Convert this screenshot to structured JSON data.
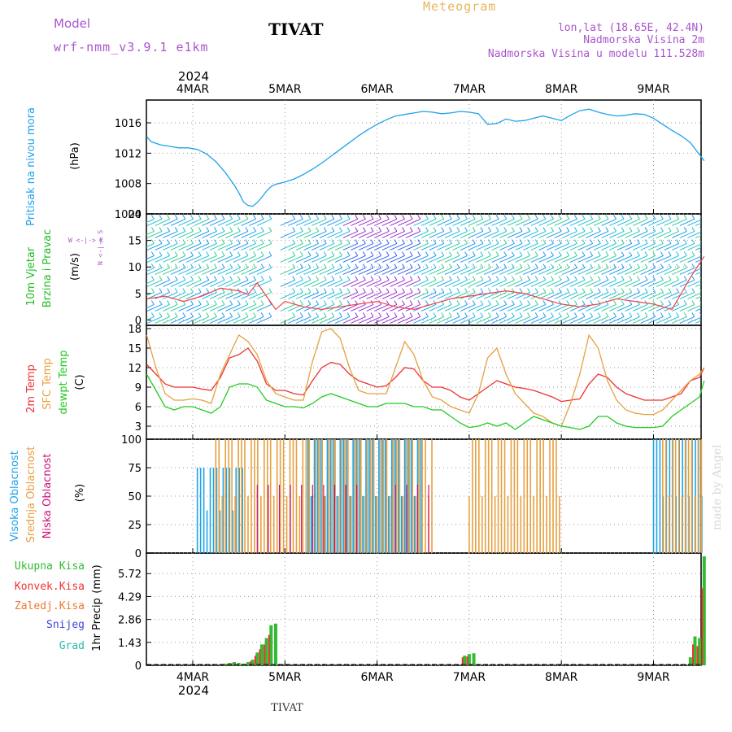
{
  "header": {
    "model_label": "Model",
    "model_name": "wrf-nmm_v3.9.1 e1km",
    "station": "TIVAT",
    "product": "Meteogram",
    "lonlat": "lon,lat (18.65E, 42.4N)",
    "elevation": "Nadmorska Visina 2m",
    "model_elevation": "Nadmorska Visina u modelu 111.528m",
    "year": "2024",
    "footer_station": "TIVAT",
    "credit": "made by Angel"
  },
  "colors": {
    "pressure": "#1fa3e8",
    "temp2m": "#ee3333",
    "sfc_temp": "#e6a040",
    "dewpt": "#22cc22",
    "high_cloud": "#1fa3e8",
    "mid_cloud": "#e6a040",
    "low_cloud": "#cc1177",
    "total_precip": "#33bb33",
    "conv_precip": "#ee3333",
    "freezing_precip": "#ee7733",
    "snow": "#4444dd",
    "hail": "#22bbaa",
    "purple_text": "#aa55cc",
    "gold_text": "#e6b85c"
  },
  "x_axis": {
    "ticks": [
      "4MAR",
      "5MAR",
      "6MAR",
      "7MAR",
      "8MAR",
      "9MAR"
    ]
  },
  "chart_data": [
    {
      "type": "line",
      "panel": "pressure",
      "ylabel_main": "Pritisak na nivou mora",
      "ylabel_unit": "(hPa)",
      "yticks": [
        "1004",
        "1008",
        "1012",
        "1016"
      ],
      "ylim": [
        1004,
        1019
      ],
      "x_unit": "days from 4MAR 00",
      "grid": true,
      "series": [
        {
          "x": [
            -0.5,
            -0.45,
            -0.35,
            -0.25,
            -0.15,
            -0.05,
            0.05,
            0.15,
            0.25,
            0.35,
            0.45,
            0.5,
            0.55,
            0.6,
            0.65,
            0.7,
            0.75,
            0.8,
            0.85,
            0.9,
            1.0,
            1.1,
            1.2,
            1.3,
            1.4,
            1.5,
            1.6,
            1.7,
            1.8,
            1.9,
            2.0,
            2.1,
            2.2,
            2.3,
            2.4,
            2.5,
            2.6,
            2.7,
            2.8,
            2.9,
            3.0,
            3.1,
            3.2,
            3.3,
            3.4,
            3.5,
            3.6,
            3.7,
            3.8,
            3.9,
            4.0,
            4.1,
            4.2,
            4.3,
            4.4,
            4.5,
            4.6,
            4.7,
            4.8,
            4.9,
            5.0,
            5.1,
            5.2,
            5.3,
            5.4,
            5.5,
            5.55
          ],
          "values": [
            1014.2,
            1013.5,
            1013.1,
            1012.9,
            1012.7,
            1012.7,
            1012.5,
            1011.9,
            1010.9,
            1009.5,
            1007.8,
            1006.8,
            1005.6,
            1005.1,
            1005.0,
            1005.5,
            1006.2,
            1007.0,
            1007.6,
            1007.9,
            1008.2,
            1008.6,
            1009.2,
            1009.9,
            1010.7,
            1011.6,
            1012.5,
            1013.4,
            1014.3,
            1015.1,
            1015.8,
            1016.4,
            1016.9,
            1017.1,
            1017.3,
            1017.5,
            1017.4,
            1017.2,
            1017.3,
            1017.5,
            1017.4,
            1017.2,
            1015.8,
            1015.9,
            1016.5,
            1016.2,
            1016.3,
            1016.6,
            1016.9,
            1016.6,
            1016.3,
            1017.0,
            1017.6,
            1017.8,
            1017.4,
            1017.1,
            1016.9,
            1017.0,
            1017.2,
            1017.1,
            1016.6,
            1015.8,
            1015.0,
            1014.3,
            1013.4,
            1011.8,
            1011.0
          ]
        }
      ]
    },
    {
      "type": "line",
      "panel": "wind",
      "ylabel_main": "10m Vjetar",
      "ylabel_sub": "Brzina i Pravac",
      "ylabel_unit": "(m/s)",
      "compass_label": "W <-|-> E",
      "compass_vertical": "N <-|-> S",
      "yticks": [
        "0",
        "5",
        "10",
        "15",
        "20"
      ],
      "ylim": [
        -1,
        20
      ],
      "grid": true,
      "series": [
        {
          "name": "",
          "x": [
            -0.5,
            -0.3,
            -0.1,
            0.1,
            0.3,
            0.5,
            0.6,
            0.7,
            0.8,
            0.9,
            1.0,
            1.2,
            1.4,
            1.6,
            1.8,
            2.0,
            2.2,
            2.4,
            2.6,
            2.8,
            3.0,
            3.2,
            3.4,
            3.6,
            3.8,
            4.0,
            4.2,
            4.4,
            4.6,
            4.8,
            5.0,
            5.2,
            5.4,
            5.55
          ],
          "values": [
            4.0,
            4.5,
            3.5,
            4.5,
            6.0,
            5.5,
            4.8,
            7.0,
            4.5,
            2.0,
            3.5,
            2.5,
            2.0,
            2.5,
            3.0,
            3.5,
            2.5,
            2.0,
            3.0,
            4.0,
            4.5,
            5.0,
            5.5,
            5.0,
            4.0,
            3.0,
            2.5,
            3.0,
            4.0,
            3.5,
            3.0,
            2.0,
            8.0,
            12.0
          ]
        }
      ]
    },
    {
      "type": "line",
      "panel": "temperature",
      "ylabel_main": "2m Temp",
      "ylabel_sub": "SFC Temp",
      "ylabel_sub2": "dewpt Temp",
      "ylabel_unit": "(C)",
      "yticks": [
        "3",
        "6",
        "9",
        "12",
        "15",
        "18"
      ],
      "ylim": [
        1,
        18.5
      ],
      "grid": true,
      "x": [
        -0.5,
        -0.4,
        -0.3,
        -0.2,
        -0.1,
        0.0,
        0.1,
        0.2,
        0.3,
        0.4,
        0.5,
        0.6,
        0.7,
        0.8,
        0.9,
        1.0,
        1.1,
        1.2,
        1.3,
        1.4,
        1.5,
        1.6,
        1.7,
        1.8,
        1.9,
        2.0,
        2.1,
        2.2,
        2.3,
        2.4,
        2.5,
        2.6,
        2.7,
        2.8,
        2.9,
        3.0,
        3.1,
        3.2,
        3.3,
        3.4,
        3.5,
        3.6,
        3.7,
        3.8,
        3.9,
        4.0,
        4.1,
        4.2,
        4.3,
        4.4,
        4.5,
        4.6,
        4.7,
        4.8,
        4.9,
        5.0,
        5.1,
        5.2,
        5.3,
        5.4,
        5.5,
        5.55
      ],
      "series": [
        {
          "name": "2m Temp",
          "values": [
            12.5,
            11.0,
            9.5,
            9.0,
            9.0,
            9.0,
            8.7,
            8.5,
            10.5,
            13.5,
            14.0,
            15.0,
            13.0,
            9.5,
            8.5,
            8.5,
            8.0,
            7.8,
            10.0,
            12.0,
            12.8,
            12.5,
            11.0,
            10.0,
            9.5,
            9.0,
            9.2,
            10.5,
            12.0,
            11.8,
            10.0,
            9.0,
            9.0,
            8.5,
            7.5,
            7.0,
            8.0,
            9.0,
            10.0,
            9.5,
            9.0,
            8.8,
            8.5,
            8.0,
            7.5,
            6.8,
            7.0,
            7.2,
            9.5,
            11.0,
            10.5,
            9.0,
            8.0,
            7.5,
            7.0,
            7.0,
            7.0,
            7.5,
            8.0,
            10.0,
            10.5,
            12.0
          ]
        },
        {
          "name": "SFC Temp",
          "values": [
            17.0,
            12.0,
            8.0,
            7.0,
            7.0,
            7.2,
            7.0,
            6.5,
            11.0,
            14.0,
            17.0,
            16.0,
            14.0,
            10.0,
            8.0,
            7.5,
            7.0,
            7.0,
            13.0,
            17.5,
            18.0,
            16.5,
            12.0,
            8.5,
            8.0,
            8.0,
            8.0,
            12.0,
            16.0,
            14.0,
            10.0,
            7.5,
            7.0,
            6.0,
            5.5,
            5.0,
            8.0,
            13.5,
            15.0,
            11.0,
            8.0,
            6.5,
            5.0,
            4.5,
            3.5,
            3.0,
            6.5,
            11.0,
            17.0,
            15.0,
            10.0,
            7.0,
            5.5,
            5.0,
            4.8,
            4.8,
            5.5,
            7.0,
            8.5,
            10.0,
            11.0,
            12.0
          ]
        },
        {
          "name": "dewpt Temp",
          "values": [
            11.0,
            8.5,
            6.0,
            5.5,
            6.0,
            6.0,
            5.5,
            5.0,
            6.0,
            9.0,
            9.5,
            9.5,
            9.0,
            7.0,
            6.5,
            6.0,
            6.0,
            5.8,
            6.5,
            7.5,
            8.0,
            7.5,
            7.0,
            6.5,
            6.0,
            6.0,
            6.5,
            6.5,
            6.5,
            6.0,
            6.0,
            5.5,
            5.5,
            4.5,
            3.5,
            2.8,
            3.0,
            3.5,
            3.0,
            3.5,
            2.5,
            3.5,
            4.5,
            4.0,
            3.5,
            3.0,
            2.8,
            2.5,
            3.0,
            4.5,
            4.5,
            3.5,
            3.0,
            2.8,
            2.8,
            2.8,
            3.0,
            4.5,
            5.5,
            6.5,
            7.5,
            10.0
          ]
        }
      ]
    },
    {
      "type": "bar",
      "panel": "cloud",
      "ylabel_main": "Visoka Oblacnost",
      "ylabel_sub": "Srednja Oblacnost",
      "ylabel_sub2": "Niska Oblacnost",
      "ylabel_unit": "(%)",
      "yticks": [
        "0",
        "25",
        "50",
        "75",
        "100"
      ],
      "ylim": [
        0,
        100
      ],
      "grid": true,
      "series": [
        {
          "name": "Visoka Oblacnost",
          "x_start": 0.0,
          "x_end": 5.55,
          "step": 0.0417,
          "note_values": "high cloud 0-100% pulsating during 4MAR 12h to 6MAR 12h and after 9MAR"
        },
        {
          "name": "Srednja Oblacnost",
          "periods": [
            [
              0.25,
              5.55
            ]
          ]
        },
        {
          "name": "Niska Oblacnost",
          "periods": [
            [
              0.7,
              1.8
            ],
            [
              2.2,
              2.6
            ]
          ]
        }
      ],
      "blocks": [
        {
          "series": "Visoka Oblacnost",
          "from": 0.05,
          "to": 0.55,
          "level": 75
        },
        {
          "series": "Srednja Oblacnost",
          "from": 0.25,
          "to": 2.6,
          "level": 100
        },
        {
          "series": "Visoka Oblacnost",
          "from": 1.25,
          "to": 2.5,
          "level": 100
        },
        {
          "series": "Srednja Oblacnost",
          "from": 3.0,
          "to": 4.0,
          "level": 100
        },
        {
          "series": "Visoka Oblacnost",
          "from": 5.0,
          "to": 5.55,
          "level": 100
        },
        {
          "series": "Srednja Oblacnost",
          "from": 5.1,
          "to": 5.55,
          "level": 100
        }
      ]
    },
    {
      "type": "bar",
      "panel": "precip",
      "ylabel_main": "1hr Precip",
      "ylabel_unit": "(mm)",
      "yticks": [
        "0",
        "1.43",
        "2.86",
        "4.29",
        "5.72"
      ],
      "ylim": [
        0,
        7
      ],
      "grid": true,
      "legend": [
        "Ukupna Kisa",
        "Konvek.Kisa",
        "Zaledj.Kisa",
        "Snijeg",
        "Grad"
      ],
      "legend_position": "left",
      "series": [
        {
          "name": "Ukupna Kisa",
          "x": [
            0.35,
            0.4,
            0.45,
            0.5,
            0.55,
            0.6,
            0.65,
            0.7,
            0.75,
            0.8,
            0.85,
            0.9,
            2.95,
            3.0,
            3.05,
            5.4,
            5.45,
            5.5,
            5.55
          ],
          "values": [
            0.1,
            0.15,
            0.2,
            0.15,
            0.1,
            0.2,
            0.35,
            0.8,
            1.3,
            1.7,
            2.5,
            2.6,
            0.6,
            0.7,
            0.75,
            0.5,
            1.8,
            1.7,
            6.8
          ]
        },
        {
          "name": "Konvek.Kisa",
          "x": [
            0.4,
            0.45,
            0.65,
            0.7,
            0.75,
            0.8,
            0.85,
            2.95,
            3.0,
            5.45,
            5.5,
            5.55
          ],
          "values": [
            0.08,
            0.12,
            0.25,
            0.6,
            1.0,
            1.3,
            1.9,
            0.5,
            0.55,
            1.3,
            1.2,
            4.8
          ]
        }
      ]
    }
  ]
}
